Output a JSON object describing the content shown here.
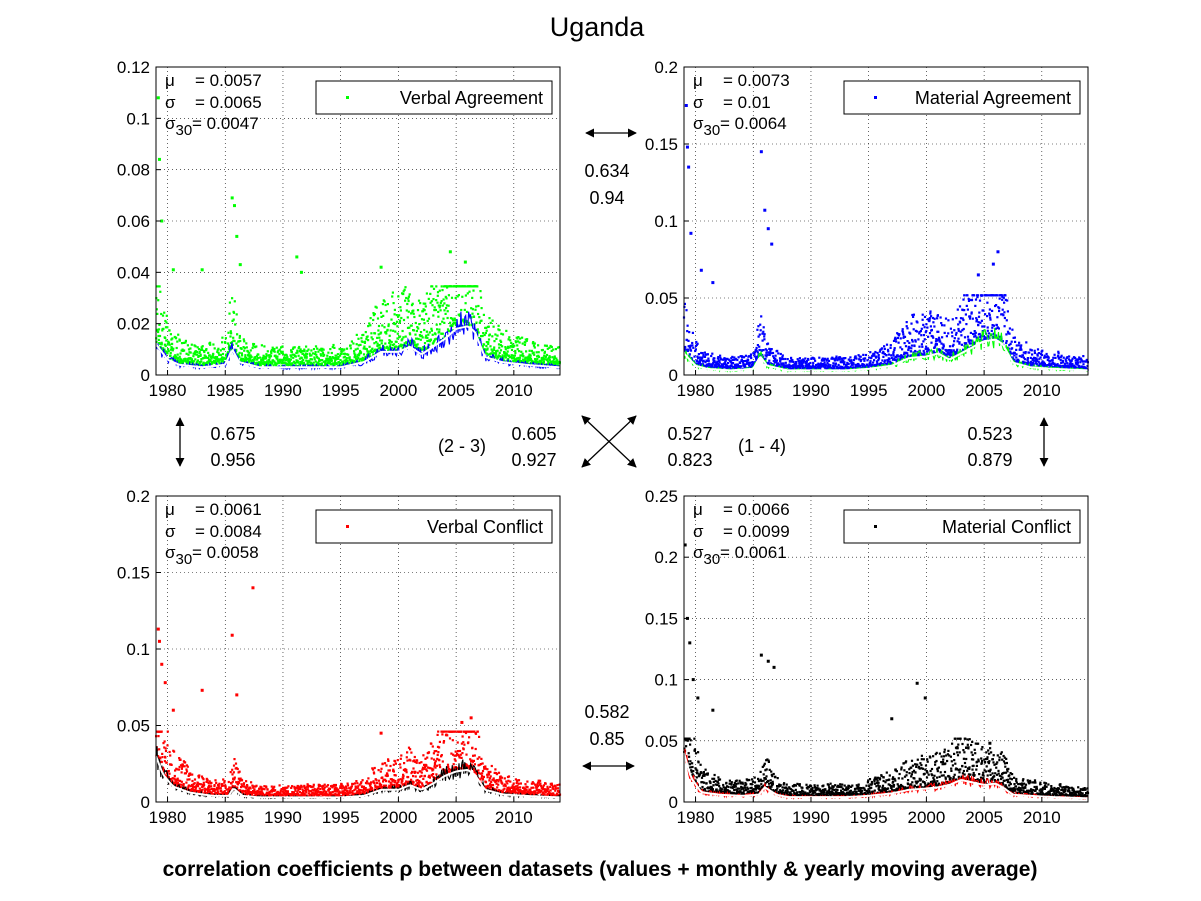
{
  "title": "Uganda",
  "caption": "correlation coefficients ρ between datasets (values + monthly & yearly moving average)",
  "chart_data": [
    {
      "type": "scatter",
      "legend": "Verbal Agreement",
      "legend_position": "top-right",
      "grid": true,
      "point_color": "#00ff00",
      "avg_color": "#0000ff",
      "smooth_color": "#ffffff",
      "xlim": [
        1979,
        2014
      ],
      "ylim": [
        0,
        0.12
      ],
      "yticks": [
        0,
        0.02,
        0.04,
        0.06,
        0.08,
        0.1,
        0.12
      ],
      "ytick_labels": [
        "0",
        "0.02",
        "0.04",
        "0.06",
        "0.08",
        "0.1",
        "0.12"
      ],
      "xticks": [
        1980,
        1985,
        1990,
        1995,
        2000,
        2005,
        2010
      ],
      "stats": {
        "mu": "= 0.0057",
        "sigma": "= 0.0065",
        "sigma30": "= 0.0047"
      },
      "scatter_max": 0.03,
      "outliers": [
        [
          1979.2,
          0.108
        ],
        [
          1979.3,
          0.084
        ],
        [
          1979.5,
          0.06
        ],
        [
          1980.5,
          0.041
        ],
        [
          1985.6,
          0.069
        ],
        [
          1985.8,
          0.066
        ],
        [
          1986.0,
          0.054
        ],
        [
          1986.3,
          0.043
        ],
        [
          1991.2,
          0.046
        ],
        [
          1991.6,
          0.04
        ],
        [
          1983.0,
          0.041
        ],
        [
          1998.5,
          0.042
        ],
        [
          2004.5,
          0.048
        ],
        [
          2005.8,
          0.044
        ]
      ],
      "trend": [
        [
          1979,
          0.012
        ],
        [
          1980,
          0.006
        ],
        [
          1981,
          0.004
        ],
        [
          1983,
          0.003
        ],
        [
          1985,
          0.004
        ],
        [
          1985.6,
          0.01
        ],
        [
          1986.2,
          0.005
        ],
        [
          1988,
          0.003
        ],
        [
          1990,
          0.003
        ],
        [
          1993,
          0.003
        ],
        [
          1995,
          0.003
        ],
        [
          1997,
          0.005
        ],
        [
          1998.5,
          0.009
        ],
        [
          2000,
          0.009
        ],
        [
          2001,
          0.011
        ],
        [
          2002,
          0.008
        ],
        [
          2003,
          0.011
        ],
        [
          2004,
          0.014
        ],
        [
          2005,
          0.018
        ],
        [
          2006,
          0.019
        ],
        [
          2006.6,
          0.017
        ],
        [
          2007.5,
          0.007
        ],
        [
          2009,
          0.005
        ],
        [
          2011,
          0.004
        ],
        [
          2014,
          0.003
        ]
      ]
    },
    {
      "type": "scatter",
      "legend": "Material Agreement",
      "legend_position": "top-right",
      "grid": true,
      "point_color": "#0000ff",
      "avg_color": "#00ff00",
      "smooth_color": "#ffffff",
      "xlim": [
        1979,
        2014
      ],
      "ylim": [
        0,
        0.2
      ],
      "yticks": [
        0,
        0.05,
        0.1,
        0.15,
        0.2
      ],
      "ytick_labels": [
        "0",
        "0.05",
        "0.1",
        "0.15",
        "0.2"
      ],
      "xticks": [
        1980,
        1985,
        1990,
        1995,
        2000,
        2005,
        2010
      ],
      "stats": {
        "mu": "= 0.0073",
        "sigma": "= 0.01",
        "sigma30": "= 0.0064"
      },
      "scatter_max": 0.045,
      "outliers": [
        [
          1979.2,
          0.175
        ],
        [
          1979.3,
          0.148
        ],
        [
          1979.4,
          0.135
        ],
        [
          1979.6,
          0.092
        ],
        [
          1985.7,
          0.145
        ],
        [
          1986.0,
          0.107
        ],
        [
          1986.3,
          0.095
        ],
        [
          1986.6,
          0.085
        ],
        [
          1980.5,
          0.068
        ],
        [
          1981.5,
          0.06
        ],
        [
          2006.2,
          0.08
        ],
        [
          2005.8,
          0.072
        ],
        [
          2004.5,
          0.065
        ]
      ],
      "trend": [
        [
          1979,
          0.014
        ],
        [
          1980,
          0.006
        ],
        [
          1981,
          0.004
        ],
        [
          1983,
          0.003
        ],
        [
          1985,
          0.004
        ],
        [
          1985.6,
          0.012
        ],
        [
          1986.2,
          0.006
        ],
        [
          1988,
          0.003
        ],
        [
          1990,
          0.003
        ],
        [
          1993,
          0.003
        ],
        [
          1995,
          0.004
        ],
        [
          1997,
          0.006
        ],
        [
          1998.5,
          0.011
        ],
        [
          2000,
          0.012
        ],
        [
          2001,
          0.014
        ],
        [
          2002,
          0.01
        ],
        [
          2003,
          0.014
        ],
        [
          2004,
          0.018
        ],
        [
          2005,
          0.022
        ],
        [
          2006,
          0.023
        ],
        [
          2006.6,
          0.02
        ],
        [
          2007.5,
          0.008
        ],
        [
          2009,
          0.005
        ],
        [
          2011,
          0.004
        ],
        [
          2014,
          0.003
        ]
      ]
    },
    {
      "type": "scatter",
      "legend": "Verbal Conflict",
      "legend_position": "top-right",
      "grid": true,
      "point_color": "#ff0000",
      "avg_color": "#000000",
      "smooth_color": "#ffffff",
      "xlim": [
        1979,
        2014
      ],
      "ylim": [
        0,
        0.2
      ],
      "yticks": [
        0,
        0.05,
        0.1,
        0.15,
        0.2
      ],
      "ytick_labels": [
        "0",
        "0.05",
        "0.1",
        "0.15",
        "0.2"
      ],
      "xticks": [
        1980,
        1985,
        1990,
        1995,
        2000,
        2005,
        2010
      ],
      "stats": {
        "mu": "= 0.0061",
        "sigma": "= 0.0084",
        "sigma30": "= 0.0058"
      },
      "scatter_max": 0.04,
      "outliers": [
        [
          1979.2,
          0.113
        ],
        [
          1979.3,
          0.105
        ],
        [
          1979.5,
          0.09
        ],
        [
          1979.8,
          0.078
        ],
        [
          1985.6,
          0.109
        ],
        [
          1987.4,
          0.14
        ],
        [
          1986.0,
          0.07
        ],
        [
          1983.0,
          0.073
        ],
        [
          1980.5,
          0.06
        ],
        [
          2005.5,
          0.052
        ],
        [
          2006.3,
          0.055
        ],
        [
          1998.5,
          0.045
        ]
      ],
      "trend": [
        [
          1979,
          0.03
        ],
        [
          1979.6,
          0.018
        ],
        [
          1980.5,
          0.01
        ],
        [
          1982,
          0.006
        ],
        [
          1984,
          0.004
        ],
        [
          1985.3,
          0.004
        ],
        [
          1985.7,
          0.009
        ],
        [
          1986.5,
          0.004
        ],
        [
          1988,
          0.003
        ],
        [
          1990,
          0.003
        ],
        [
          1993,
          0.003
        ],
        [
          1995,
          0.003
        ],
        [
          1997,
          0.004
        ],
        [
          1998.5,
          0.008
        ],
        [
          2000,
          0.008
        ],
        [
          2001,
          0.011
        ],
        [
          2002,
          0.008
        ],
        [
          2003,
          0.012
        ],
        [
          2004,
          0.017
        ],
        [
          2005,
          0.02
        ],
        [
          2006,
          0.021
        ],
        [
          2006.6,
          0.018
        ],
        [
          2007.5,
          0.008
        ],
        [
          2009,
          0.005
        ],
        [
          2011,
          0.004
        ],
        [
          2014,
          0.003
        ]
      ]
    },
    {
      "type": "scatter",
      "legend": "Material Conflict",
      "legend_position": "top-right",
      "grid": true,
      "point_color": "#000000",
      "avg_color": "#ff0000",
      "smooth_color": "#ffffff",
      "xlim": [
        1979,
        2014
      ],
      "ylim": [
        0,
        0.25
      ],
      "yticks": [
        0,
        0.05,
        0.1,
        0.15,
        0.2,
        0.25
      ],
      "ytick_labels": [
        "0",
        "0.05",
        "0.1",
        "0.15",
        "0.2",
        "0.25"
      ],
      "xticks": [
        1980,
        1985,
        1990,
        1995,
        2000,
        2005,
        2010
      ],
      "stats": {
        "mu": "= 0.0066",
        "sigma": "= 0.0099",
        "sigma30": "= 0.0061"
      },
      "scatter_max": 0.045,
      "outliers": [
        [
          1979.1,
          0.21
        ],
        [
          1979.3,
          0.15
        ],
        [
          1979.5,
          0.13
        ],
        [
          1979.8,
          0.1
        ],
        [
          1980.2,
          0.085
        ],
        [
          1985.7,
          0.12
        ],
        [
          1986.3,
          0.115
        ],
        [
          1986.8,
          0.11
        ],
        [
          1981.5,
          0.075
        ],
        [
          1999.2,
          0.097
        ],
        [
          1999.9,
          0.085
        ],
        [
          1997.0,
          0.068
        ],
        [
          2005.5,
          0.048
        ]
      ],
      "trend": [
        [
          1979,
          0.04
        ],
        [
          1979.6,
          0.02
        ],
        [
          1980.5,
          0.008
        ],
        [
          1982,
          0.006
        ],
        [
          1984,
          0.005
        ],
        [
          1985.5,
          0.006
        ],
        [
          1986,
          0.012
        ],
        [
          1987,
          0.006
        ],
        [
          1988,
          0.004
        ],
        [
          1990,
          0.004
        ],
        [
          1993,
          0.004
        ],
        [
          1995,
          0.005
        ],
        [
          1997,
          0.007
        ],
        [
          1998.5,
          0.01
        ],
        [
          2000,
          0.011
        ],
        [
          2001,
          0.012
        ],
        [
          2002,
          0.014
        ],
        [
          2003,
          0.018
        ],
        [
          2004,
          0.016
        ],
        [
          2005,
          0.014
        ],
        [
          2006,
          0.015
        ],
        [
          2006.6,
          0.012
        ],
        [
          2007.5,
          0.006
        ],
        [
          2009,
          0.005
        ],
        [
          2011,
          0.004
        ],
        [
          2014,
          0.003
        ]
      ]
    }
  ],
  "correlations": {
    "top": {
      "rho": "0.634",
      "rho_avg": "0.94"
    },
    "bottom": {
      "rho": "0.582",
      "rho_avg": "0.85"
    },
    "left": {
      "rho": "0.675",
      "rho_avg": "0.956"
    },
    "right": {
      "rho": "0.523",
      "rho_avg": "0.879"
    },
    "diag_2_3": {
      "label": "(2 - 3)",
      "rho": "0.605",
      "rho_avg": "0.927"
    },
    "diag_1_4": {
      "label": "(1 - 4)",
      "rho": "0.527",
      "rho_avg": "0.823"
    }
  }
}
